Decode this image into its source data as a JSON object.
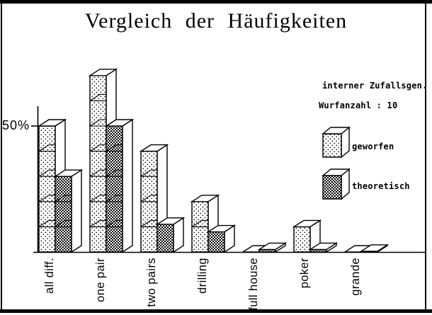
{
  "title": "Vergleich der Häufigkeiten",
  "annotations": {
    "generator": "interner Zufallsgen.",
    "throw_count": "Wurfanzahl : 10"
  },
  "y_axis": {
    "tick_label": "50%",
    "tick_value": 50
  },
  "legend": {
    "items": [
      {
        "label": "geworfen",
        "pattern": "dots"
      },
      {
        "label": "theoretisch",
        "pattern": "check"
      }
    ]
  },
  "colors": {
    "foreground": "#000000",
    "background": "#ffffff"
  },
  "chart_data": {
    "type": "bar",
    "style": "3d-cube-stack",
    "title": "Vergleich der Häufigkeiten",
    "categories": [
      "all diff.",
      "one pair",
      "two pairs",
      "drilling",
      "full house",
      "poker",
      "grande"
    ],
    "series": [
      {
        "name": "geworfen",
        "pattern": "dots",
        "values_percent": [
          50,
          70,
          40,
          20,
          0,
          10,
          0
        ]
      },
      {
        "name": "theoretisch",
        "pattern": "check",
        "values_percent": [
          30,
          50,
          11,
          8,
          1,
          1,
          0.3
        ]
      }
    ],
    "unit": "%",
    "ylim": [
      0,
      75
    ],
    "y_ticks": [
      {
        "value": 50,
        "label": "50%"
      }
    ],
    "segment_size_percent": 10,
    "legend_position": "right",
    "grid": false,
    "annotations": [
      "interner Zufallsgen.",
      "Wurfanzahl : 10"
    ]
  }
}
